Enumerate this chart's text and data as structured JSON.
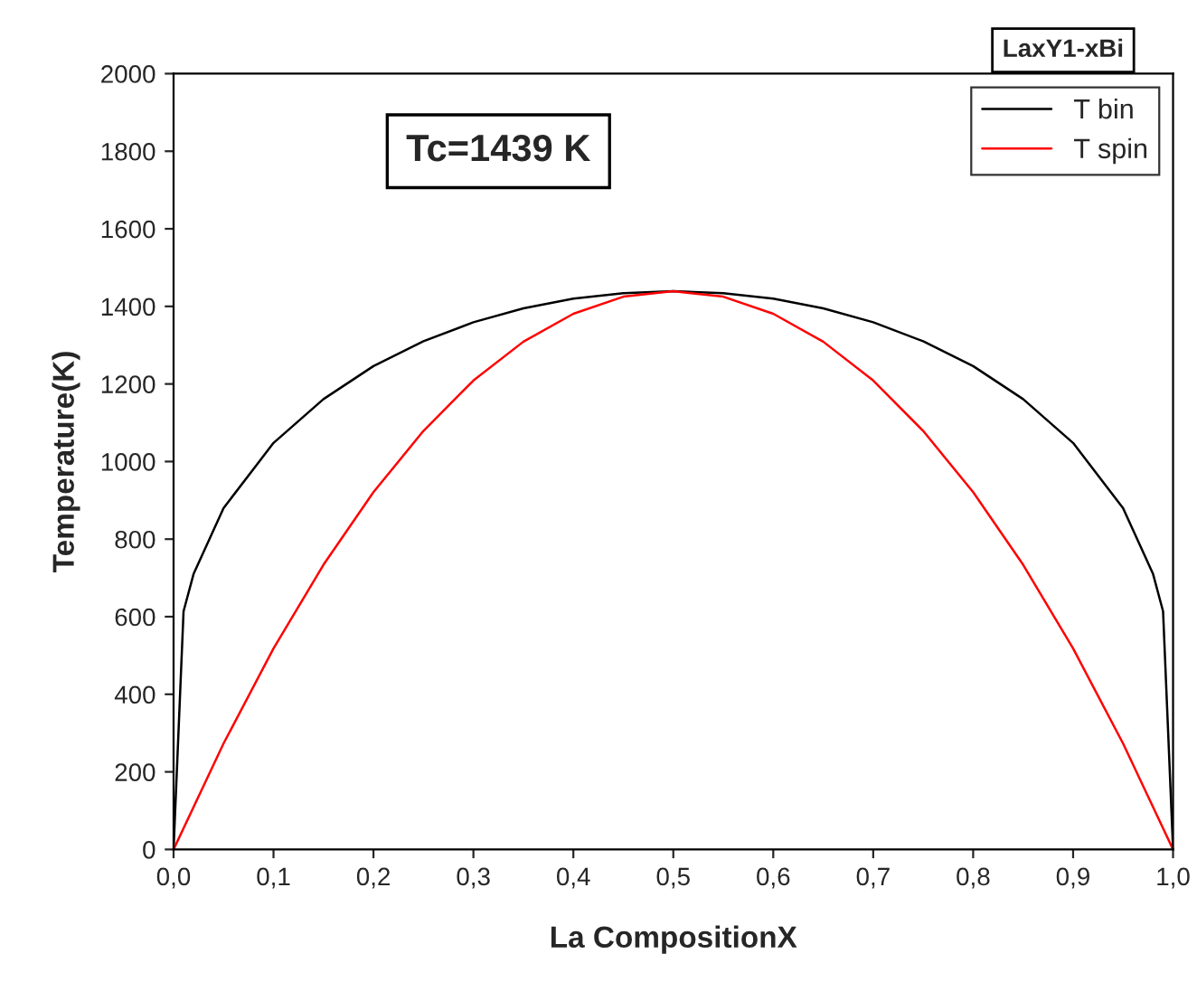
{
  "chart_data": {
    "type": "line",
    "title": "LaxY1-xBi",
    "xlabel": "La CompositionX",
    "ylabel": "Temperature(K)",
    "annotations": [
      "Tc=1439 K"
    ],
    "series": [
      {
        "name": "T bin",
        "color": "#000000",
        "x": [
          0,
          0.01,
          0.02,
          0.05,
          0.1,
          0.15,
          0.2,
          0.25,
          0.3,
          0.35,
          0.4,
          0.45,
          0.5,
          0.55,
          0.6,
          0.65,
          0.7,
          0.75,
          0.8,
          0.85,
          0.9,
          0.95,
          0.98,
          0.99,
          1
        ],
        "values": [
          0,
          614,
          710,
          880,
          1048,
          1161,
          1246,
          1310,
          1359,
          1395,
          1420,
          1434,
          1439,
          1434,
          1420,
          1395,
          1359,
          1310,
          1246,
          1161,
          1048,
          880,
          710,
          614,
          0
        ]
      },
      {
        "name": "T spin",
        "color": "#ff0000",
        "x": [
          0,
          0.05,
          0.1,
          0.15,
          0.2,
          0.25,
          0.3,
          0.35,
          0.4,
          0.45,
          0.5,
          0.55,
          0.6,
          0.65,
          0.7,
          0.75,
          0.8,
          0.85,
          0.9,
          0.95,
          1
        ],
        "values": [
          0,
          273,
          518,
          734,
          921,
          1079,
          1209,
          1309,
          1381,
          1425,
          1439,
          1425,
          1381,
          1309,
          1209,
          1079,
          921,
          734,
          518,
          273,
          0
        ]
      }
    ],
    "xlim": [
      0,
      1
    ],
    "ylim": [
      0,
      2000
    ],
    "xticks": [
      {
        "value": 0,
        "label": "0,0"
      },
      {
        "value": 0.1,
        "label": "0,1"
      },
      {
        "value": 0.2,
        "label": "0,2"
      },
      {
        "value": 0.3,
        "label": "0,3"
      },
      {
        "value": 0.4,
        "label": "0,4"
      },
      {
        "value": 0.5,
        "label": "0,5"
      },
      {
        "value": 0.6,
        "label": "0,6"
      },
      {
        "value": 0.7,
        "label": "0,7"
      },
      {
        "value": 0.8,
        "label": "0,8"
      },
      {
        "value": 0.9,
        "label": "0,9"
      },
      {
        "value": 1,
        "label": "1,0"
      }
    ],
    "yticks": [
      0,
      200,
      400,
      600,
      800,
      1000,
      1200,
      1400,
      1600,
      1800,
      2000
    ],
    "legend": "top right",
    "grid": false,
    "marker": "none",
    "line_style": "solid"
  }
}
